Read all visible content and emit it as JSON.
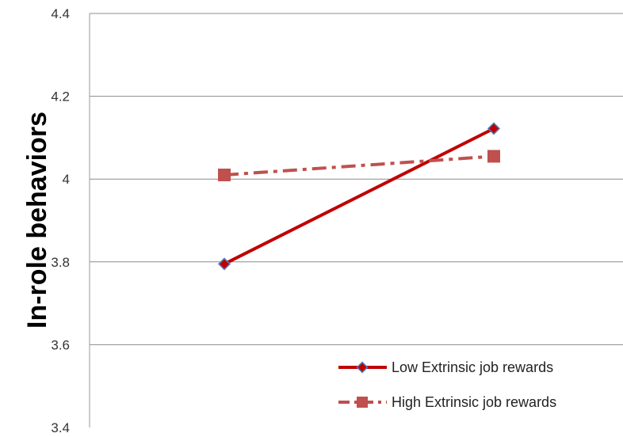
{
  "chart_data": {
    "type": "line",
    "ylabel": "In-role behaviors",
    "xlabel": "",
    "title": "",
    "ylim": [
      3.4,
      4.4
    ],
    "yticks": [
      3.4,
      3.6,
      3.8,
      4,
      4.2,
      4.4
    ],
    "ytick_labels": [
      "3.4",
      "3.6",
      "3.8",
      "4",
      "4.2",
      "4.4"
    ],
    "grid": "horizontal",
    "legend_position": "bottom-right",
    "x": [
      1,
      2
    ],
    "series": [
      {
        "name": "Low Extrinsic job rewards",
        "values": [
          3.795,
          4.122
        ],
        "color": "#c00000",
        "marker": "diamond",
        "line_style": "solid"
      },
      {
        "name": "High Extrinsic job rewards",
        "values": [
          4.01,
          4.055
        ],
        "color": "#c0504d",
        "marker": "square",
        "line_style": "dash-dot"
      }
    ]
  }
}
